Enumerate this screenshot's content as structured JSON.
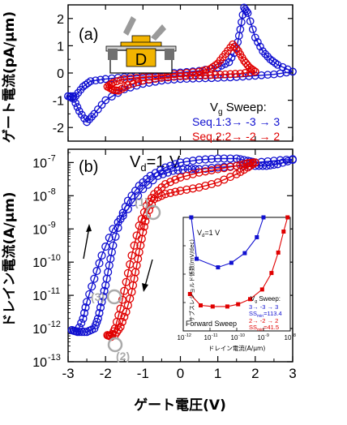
{
  "chart_data": [
    {
      "panel": "(a)",
      "type": "line",
      "ylabel": "ゲート電流(pA/μm)",
      "xlim": [
        -3,
        3
      ],
      "ylim": [
        -2.5,
        2.5
      ],
      "yticks": [
        "-2",
        "-1",
        "0",
        "1",
        "2"
      ],
      "legend": {
        "title_main": "V",
        "title_sub": "g",
        "title_rest": " Sweep:",
        "entries": [
          "Seq.1:3→ -3 → 3",
          "Seq.2:2→ -2 → 2"
        ]
      },
      "inset_label": "D",
      "series": [
        {
          "name": "Seq.1:3→ -3 → 3",
          "color": "#1010d0",
          "loop_a": [
            [
              -3.0,
              -0.85
            ],
            [
              -2.8,
              -0.85
            ],
            [
              -2.6,
              -0.5
            ],
            [
              -2.4,
              -0.3
            ],
            [
              -2.0,
              -0.22
            ],
            [
              -1.5,
              -0.15
            ],
            [
              -1.0,
              -0.08
            ],
            [
              -0.5,
              -0.02
            ],
            [
              0.0,
              0.02
            ],
            [
              0.5,
              0.08
            ],
            [
              1.0,
              0.2
            ],
            [
              1.3,
              0.4
            ],
            [
              1.5,
              0.9
            ],
            [
              1.6,
              1.6
            ],
            [
              1.7,
              2.4
            ],
            [
              1.8,
              2.2
            ],
            [
              2.0,
              1.3
            ],
            [
              2.2,
              0.8
            ],
            [
              2.4,
              0.5
            ],
            [
              2.6,
              0.3
            ],
            [
              3.0,
              0.05
            ]
          ],
          "loop_b": [
            [
              3.0,
              0.05
            ],
            [
              2.5,
              -0.05
            ],
            [
              2.0,
              -0.1
            ],
            [
              1.5,
              -0.15
            ],
            [
              1.0,
              -0.18
            ],
            [
              0.5,
              -0.2
            ],
            [
              0.0,
              -0.22
            ],
            [
              -0.5,
              -0.28
            ],
            [
              -1.0,
              -0.4
            ],
            [
              -1.5,
              -0.6
            ],
            [
              -2.0,
              -1.0
            ],
            [
              -2.3,
              -1.5
            ],
            [
              -2.5,
              -1.8
            ],
            [
              -2.7,
              -1.4
            ],
            [
              -2.85,
              -0.95
            ],
            [
              -3.0,
              -0.85
            ]
          ]
        },
        {
          "name": "Seq.2:2→ -2 → 2",
          "color": "#e00000",
          "loop_a": [
            [
              -1.95,
              -0.5
            ],
            [
              -1.8,
              -0.35
            ],
            [
              -1.5,
              -0.22
            ],
            [
              -1.0,
              -0.15
            ],
            [
              -0.5,
              -0.1
            ],
            [
              0.0,
              -0.02
            ],
            [
              0.5,
              0.05
            ],
            [
              0.8,
              0.15
            ],
            [
              1.0,
              0.35
            ],
            [
              1.2,
              0.7
            ],
            [
              1.4,
              1.05
            ],
            [
              1.55,
              0.8
            ],
            [
              1.7,
              0.45
            ],
            [
              1.85,
              0.2
            ],
            [
              2.0,
              0.05
            ]
          ],
          "loop_b": [
            [
              2.0,
              0.05
            ],
            [
              1.6,
              -0.02
            ],
            [
              1.2,
              -0.05
            ],
            [
              0.8,
              -0.08
            ],
            [
              0.4,
              -0.1
            ],
            [
              0.0,
              -0.12
            ],
            [
              -0.5,
              -0.18
            ],
            [
              -1.0,
              -0.28
            ],
            [
              -1.4,
              -0.45
            ],
            [
              -1.65,
              -0.65
            ],
            [
              -1.8,
              -0.62
            ],
            [
              -1.95,
              -0.5
            ]
          ]
        }
      ]
    },
    {
      "panel": "(b)",
      "type": "line",
      "title_main": "V",
      "title_sub": "d",
      "title_rest": "=1 V",
      "xlabel": "ゲート電圧(V)",
      "ylabel": "ドレイン電流(A/μm)",
      "xlim": [
        -3,
        3
      ],
      "ylog": true,
      "ylim_exp": [
        -13,
        -6.6
      ],
      "xticks": [
        "-3",
        "-2",
        "-1",
        "0",
        "1",
        "2",
        "3"
      ],
      "yticks_exp": [
        -7,
        -8,
        -9,
        -10,
        -11,
        -12,
        -13
      ],
      "annotations": [
        "(1)",
        "(2)",
        "(3)"
      ],
      "series": [
        {
          "name": "Seq.1:3→ -3 → 3",
          "color": "#1010d0",
          "loop_a": [
            [
              -2.9,
              -12.05
            ],
            [
              -2.7,
              -12.1
            ],
            [
              -2.5,
              -12.1
            ],
            [
              -2.3,
              -12.0
            ],
            [
              -2.2,
              -11.7
            ],
            [
              -2.1,
              -11.2
            ],
            [
              -2.0,
              -10.7
            ],
            [
              -1.9,
              -10.1
            ],
            [
              -1.8,
              -9.5
            ],
            [
              -1.6,
              -8.7
            ],
            [
              -1.4,
              -8.15
            ],
            [
              -1.1,
              -7.7
            ],
            [
              -0.8,
              -7.4
            ],
            [
              -0.4,
              -7.15
            ],
            [
              0.0,
              -7.0
            ],
            [
              0.5,
              -6.92
            ],
            [
              1.0,
              -6.88
            ],
            [
              1.5,
              -6.88
            ],
            [
              1.8,
              -6.95
            ],
            [
              2.0,
              -7.0
            ],
            [
              2.5,
              -6.95
            ],
            [
              3.0,
              -6.9
            ]
          ],
          "loop_b": [
            [
              3.0,
              -6.92
            ],
            [
              2.6,
              -7.05
            ],
            [
              2.3,
              -7.1
            ],
            [
              2.0,
              -7.1
            ],
            [
              1.5,
              -7.1
            ],
            [
              1.0,
              -7.15
            ],
            [
              0.5,
              -7.2
            ],
            [
              0.2,
              -7.2
            ],
            [
              -0.2,
              -7.25
            ],
            [
              -0.6,
              -7.4
            ],
            [
              -1.0,
              -7.8
            ],
            [
              -1.4,
              -8.4
            ],
            [
              -1.8,
              -9.0
            ],
            [
              -2.1,
              -9.8
            ],
            [
              -2.3,
              -10.5
            ],
            [
              -2.5,
              -11.2
            ],
            [
              -2.6,
              -11.7
            ],
            [
              -2.75,
              -12.1
            ],
            [
              -2.9,
              -12.05
            ]
          ]
        },
        {
          "name": "Seq.2:2→ -2 → 2",
          "color": "#e00000",
          "loop_a": [
            [
              -1.95,
              -12.2
            ],
            [
              -1.85,
              -12.25
            ],
            [
              -1.75,
              -12.0
            ],
            [
              -1.6,
              -11.4
            ],
            [
              -1.45,
              -10.6
            ],
            [
              -1.3,
              -9.8
            ],
            [
              -1.1,
              -8.9
            ],
            [
              -0.9,
              -8.3
            ],
            [
              -0.7,
              -7.95
            ],
            [
              -0.4,
              -7.65
            ],
            [
              0.0,
              -7.45
            ],
            [
              0.5,
              -7.3
            ],
            [
              1.0,
              -7.2
            ],
            [
              1.5,
              -7.1
            ],
            [
              1.8,
              -7.02
            ],
            [
              2.0,
              -7.0
            ]
          ],
          "loop_b": [
            [
              2.0,
              -7.0
            ],
            [
              1.8,
              -7.15
            ],
            [
              1.5,
              -7.35
            ],
            [
              1.0,
              -7.6
            ],
            [
              0.5,
              -7.75
            ],
            [
              0.0,
              -7.85
            ],
            [
              -0.4,
              -7.95
            ],
            [
              -0.7,
              -8.1
            ],
            [
              -0.9,
              -8.6
            ],
            [
              -1.0,
              -9.1
            ],
            [
              -1.1,
              -9.7
            ],
            [
              -1.2,
              -10.3
            ],
            [
              -1.3,
              -10.9
            ],
            [
              -1.45,
              -11.5
            ],
            [
              -1.6,
              -11.95
            ],
            [
              -1.75,
              -12.2
            ],
            [
              -1.95,
              -12.2
            ]
          ]
        }
      ]
    },
    {
      "panel": "inset",
      "type": "line",
      "ylabel": "サブスレショルド係数(mV/dec)",
      "xlabel": "ドレイン電流(A/μm)",
      "xlog": true,
      "xlim_exp": [
        -12,
        -8
      ],
      "xticks_exp": [
        -12,
        -11,
        -10,
        -9,
        -8
      ],
      "ylim": [
        0,
        200
      ],
      "vd_main": "V",
      "vd_sub": "d",
      "vd_rest": "=1 V",
      "legend": {
        "title_main": "V",
        "title_sub": "g",
        "title_rest": " Sweep:",
        "line1": "3→ -3 → 3",
        "ss1_main": "SS",
        "ss1_sub": "min",
        "ss1_rest": "=113.4",
        "line2": "2→ -2 → 2",
        "ss2_main": "SS",
        "ss2_sub": "min",
        "ss2_rest": "=41.5"
      },
      "forward_label": "Forward Sweep",
      "series": [
        {
          "name": "3→ -3 → 3",
          "color": "#1010d0",
          "points": [
            [
              -11.7,
              200
            ],
            [
              -11.5,
              127
            ],
            [
              -10.7,
              112
            ],
            [
              -10.2,
              120
            ],
            [
              -9.7,
              137
            ],
            [
              -9.25,
              165
            ],
            [
              -9.0,
              200
            ]
          ]
        },
        {
          "name": "2→ -2 → 2",
          "color": "#e00000",
          "points": [
            [
              -11.75,
              65
            ],
            [
              -11.35,
              45
            ],
            [
              -10.9,
              43
            ],
            [
              -10.35,
              43
            ],
            [
              -9.95,
              47
            ],
            [
              -9.5,
              56
            ],
            [
              -9.05,
              73
            ],
            [
              -8.7,
              102
            ],
            [
              -8.45,
              138
            ],
            [
              -8.25,
              175
            ],
            [
              -8.1,
              200
            ]
          ]
        }
      ]
    }
  ]
}
